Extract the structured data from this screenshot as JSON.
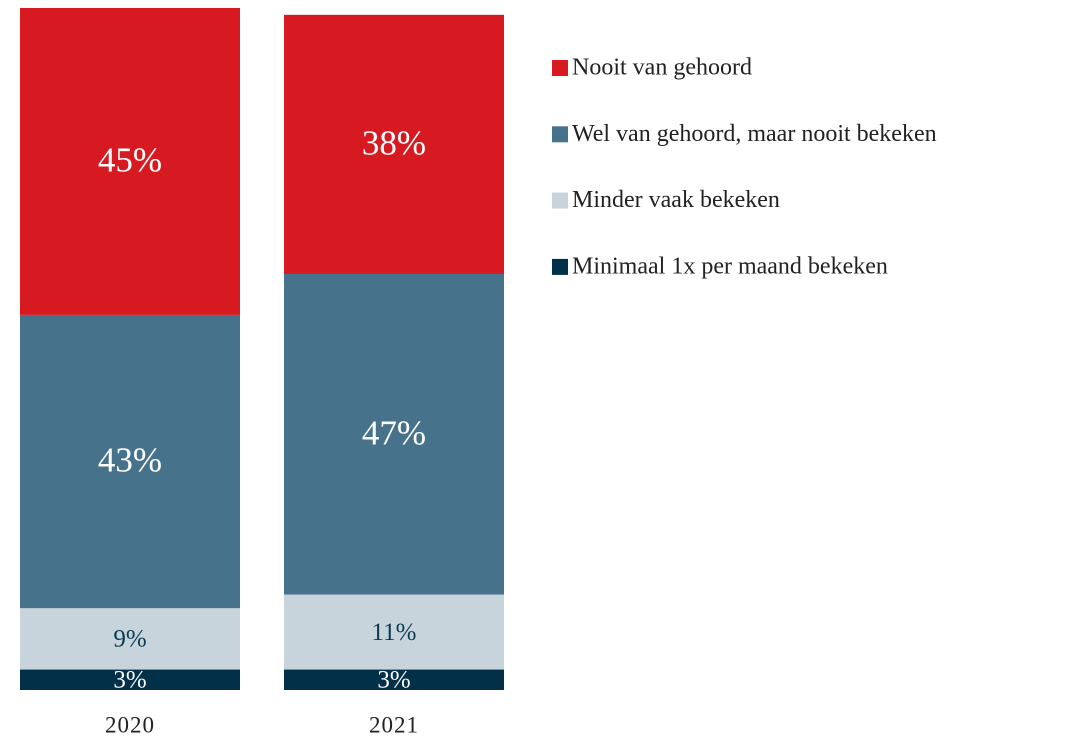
{
  "chart_data": {
    "type": "stacked_bar",
    "categories": [
      "2020",
      "2021"
    ],
    "ylim": [
      0,
      100
    ],
    "legend": "right",
    "series": [
      {
        "name": "Nooit van gehoord",
        "color": "#d71a21",
        "label_color": "#ffffff",
        "values": [
          45,
          38
        ],
        "value_labels": [
          "45%",
          "38%"
        ]
      },
      {
        "name": "Wel van gehoord, maar nooit bekeken",
        "color": "#46728c",
        "label_color": "#ffffff",
        "values": [
          43,
          47
        ],
        "value_labels": [
          "43%",
          "47%"
        ]
      },
      {
        "name": "Minder vaak bekeken",
        "color": "#c8d4dc",
        "label_color": "#0b3a55",
        "values": [
          9,
          11
        ],
        "value_labels": [
          "9%",
          "11%"
        ]
      },
      {
        "name": "Minimaal 1x per maand bekeken",
        "color": "#033049",
        "label_color": "#ffffff",
        "values": [
          3,
          3
        ],
        "value_labels": [
          "3%",
          "3%"
        ]
      }
    ]
  }
}
